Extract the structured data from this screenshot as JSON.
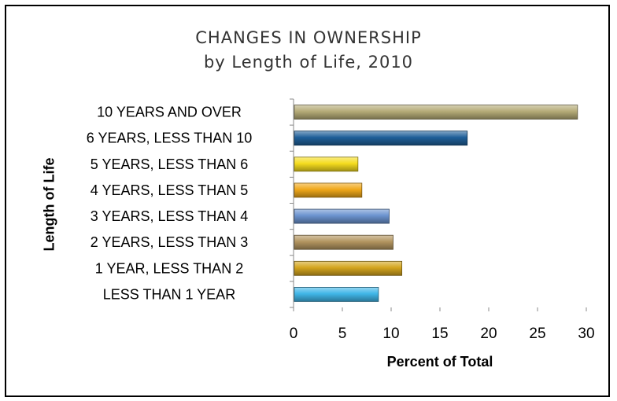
{
  "chart_data": {
    "type": "bar",
    "orientation": "horizontal",
    "title": "CHANGES IN OWNERSHIP",
    "subtitle": "by Length of Life, 2010",
    "xlabel": "Percent of Total",
    "ylabel": "Length of Life",
    "categories": [
      "10 YEARS AND OVER",
      "6 YEARS, LESS THAN 10",
      "5 YEARS, LESS THAN 6",
      "4 YEARS, LESS THAN 5",
      "3 YEARS, LESS THAN 4",
      "2 YEARS, LESS THAN 3",
      "1 YEAR, LESS THAN 2",
      "LESS THAN 1 YEAR"
    ],
    "values": [
      29.1,
      17.8,
      6.6,
      7.0,
      9.8,
      10.2,
      11.1,
      8.7
    ],
    "colors": [
      "#b5ab77",
      "#1f5f99",
      "#f5dc1e",
      "#f0a81a",
      "#6b93cf",
      "#b39560",
      "#d4a51e",
      "#40b6e8"
    ],
    "xlim": [
      0,
      30
    ],
    "xticks": [
      0,
      5,
      10,
      15,
      20,
      25,
      30
    ],
    "grid": false,
    "legend": "none"
  }
}
